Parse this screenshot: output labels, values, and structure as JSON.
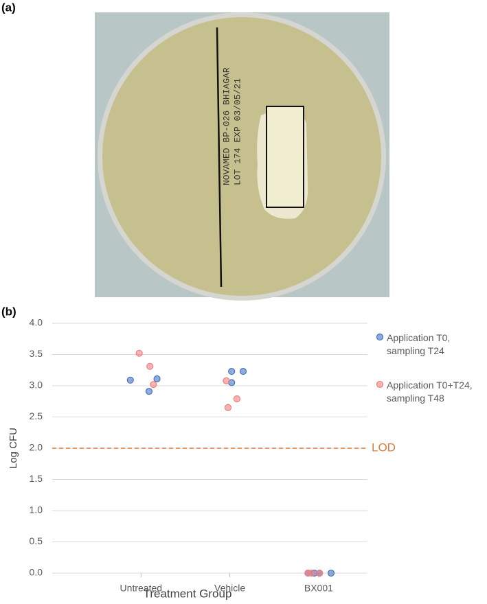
{
  "panels": {
    "a": "(a)",
    "b": "(b)"
  },
  "photo": {
    "label_lines": [
      "NOVAMED BP-026 BHIAGAR",
      "LOT 174  EXP 03/05/21"
    ]
  },
  "chart_data": {
    "type": "scatter",
    "x_label": "Treatment Group",
    "y_label": "Log CFU",
    "xlim": [
      0,
      3.55
    ],
    "xticks": [
      {
        "value": 1,
        "label": "Untreated"
      },
      {
        "value": 2,
        "label": "Vehicle"
      },
      {
        "value": 3,
        "label": "BX001"
      }
    ],
    "ylim": [
      0,
      4
    ],
    "yticks": [
      {
        "value": 0,
        "label": "0.0"
      },
      0.5,
      {
        "value": 1,
        "label": "1.0"
      },
      1.5,
      {
        "value": 2,
        "label": "2.0"
      },
      2.5,
      {
        "value": 3,
        "label": "3.0"
      },
      3.5,
      {
        "value": 4,
        "label": "4.0"
      }
    ],
    "grid": true,
    "series": [
      {
        "name": "Application T0, sampling T24",
        "color": "#4472c4",
        "x": [
          0.88,
          1.09,
          1.18,
          2.02,
          2.02,
          2.15,
          2.88,
          2.95,
          3.01,
          3.14
        ],
        "values": [
          3.09,
          2.91,
          3.11,
          3.05,
          3.23,
          3.23,
          0,
          0,
          0,
          0
        ]
      },
      {
        "name": "Application T0+T24, sampling T48",
        "color": "#f08080",
        "x": [
          0.98,
          1.1,
          1.14,
          1.96,
          2.08,
          1.98,
          2.88,
          2.92,
          3.01
        ],
        "values": [
          3.52,
          3.31,
          3.02,
          3.08,
          2.79,
          2.65,
          0,
          0,
          0
        ]
      }
    ],
    "reference_line": {
      "value": 2,
      "label": "LOD",
      "color": "#e07b39"
    }
  }
}
